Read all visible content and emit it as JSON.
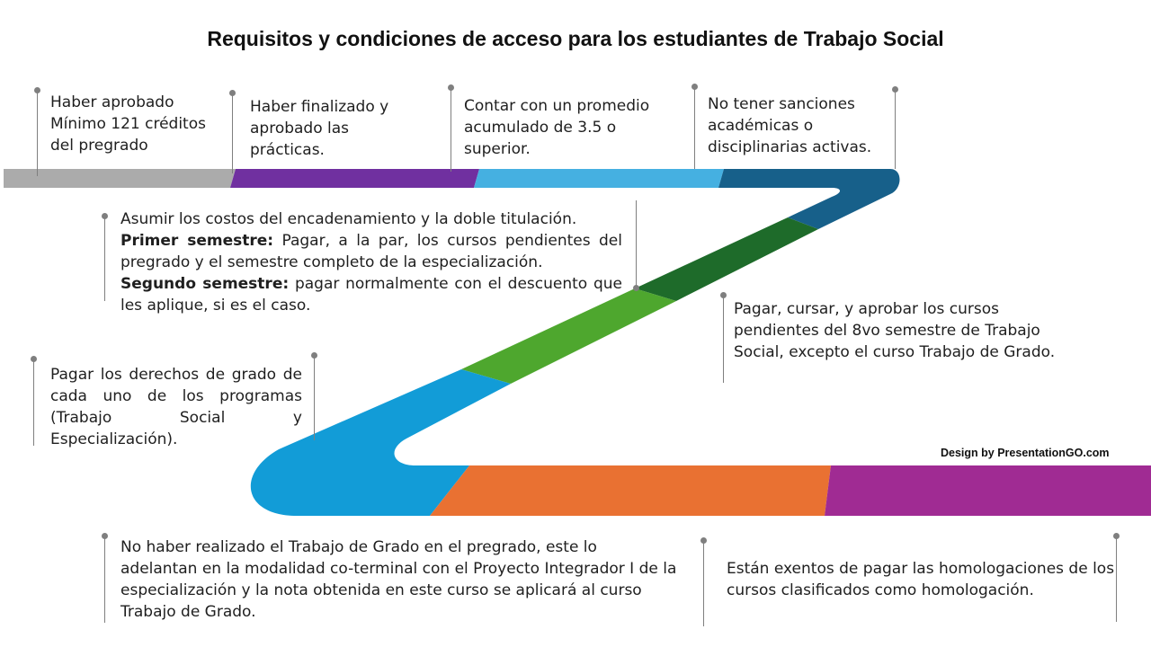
{
  "title": "Requisitos y condiciones de acceso para los estudiantes de Trabajo Social",
  "credit": "Design by PresentationGO.com",
  "colors": {
    "gray": "#ababab",
    "purple": "#7030a0",
    "light_blue": "#45b0e1",
    "dark_blue": "#17608a",
    "dark_green": "#1e6b2a",
    "green": "#4ea72e",
    "blue": "#129cd7",
    "orange": "#e97132",
    "magenta": "#a02b93",
    "connector": "#7f7f7f"
  },
  "notes": {
    "n1": [
      "Haber aprobado",
      "Mínimo 121 créditos",
      "del pregrado"
    ],
    "n2": [
      "Haber finalizado y",
      "aprobado las",
      "prácticas."
    ],
    "n3": [
      "Contar con un promedio",
      "acumulado de 3.5 o",
      "superior."
    ],
    "n4": [
      "No tener sanciones",
      "académicas o",
      "disciplinarias activas."
    ],
    "n5": {
      "line1": "Asumir los costos del encadenamiento y la doble titulación.",
      "bold1": "Primer semestre:",
      "text1": " Pagar, a la par, los cursos pendientes del pregrado y el semestre completo de la especialización.",
      "bold2": "Segundo semestre:",
      "text2": " pagar normalmente con el descuento que les aplique, si es el caso."
    },
    "n6": "Pagar, cursar, y aprobar los cursos pendientes del 8vo semestre de Trabajo Social, excepto el curso Trabajo de Grado.",
    "n7": "Pagar los derechos de grado de cada uno de los programas (Trabajo Social y Especialización).",
    "n8": "No haber realizado el Trabajo de Grado en el pregrado, este lo adelantan en la modalidad co-terminal con el Proyecto Integrador I de la especialización y la nota obtenida en este curso se aplicará al curso Trabajo de Grado.",
    "n9": "Están exentos de pagar las homologaciones de los cursos clasificados como homologación."
  }
}
